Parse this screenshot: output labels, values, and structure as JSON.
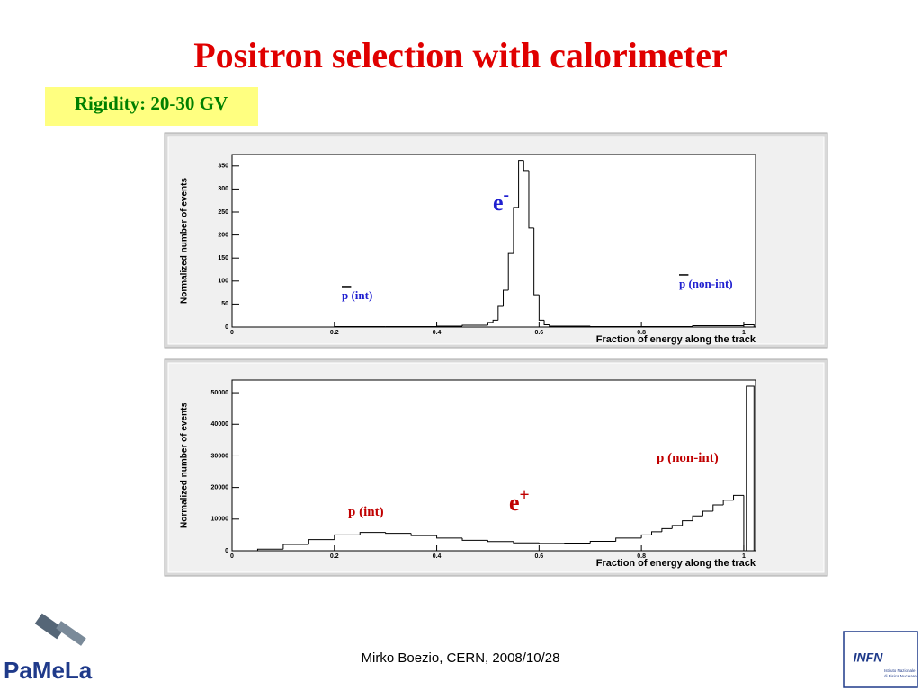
{
  "title": "Positron selection with calorimeter",
  "subtitle": "Rigidity: 20-30 GV",
  "footer": "Mirko Boezio, CERN, 2008/10/28",
  "logos": {
    "left": "PaMeLa",
    "right": "INFN",
    "right_caption": [
      "Istituto Nazionale",
      "di Fisica Nucleare"
    ]
  },
  "chart_data": [
    {
      "type": "histogram",
      "xlabel": "Fraction of energy along the track",
      "ylabel": "Normalized number of events",
      "bins": [
        0,
        0.1,
        0.2,
        0.3,
        0.4,
        0.45,
        0.5,
        0.51,
        0.52,
        0.53,
        0.54,
        0.55,
        0.56,
        0.57,
        0.58,
        0.59,
        0.6,
        0.61,
        0.62,
        0.7,
        0.8,
        0.9,
        1.0,
        1.02
      ],
      "values": [
        0,
        0,
        1,
        1,
        2,
        4,
        10,
        15,
        45,
        80,
        160,
        260,
        362,
        340,
        215,
        70,
        15,
        5,
        2,
        1,
        1,
        3,
        5
      ],
      "color": "#000000",
      "xlim": [
        0,
        1.023
      ],
      "ylim": [
        0,
        375
      ],
      "xticks": [
        0,
        0.2,
        0.4,
        0.6,
        0.8,
        1
      ],
      "yticks": [
        0,
        50,
        100,
        150,
        200,
        250,
        300,
        350
      ],
      "annotations": [
        {
          "text": "e",
          "sup": "-",
          "color": "#1f1fd0"
        },
        {
          "text": "p (int)",
          "overbar": true,
          "color": "#1f1fd0"
        },
        {
          "text": "p (non-int)",
          "overbar": true,
          "color": "#1f1fd0"
        }
      ]
    },
    {
      "type": "histogram",
      "xlabel": "Fraction of energy along the track",
      "ylabel": "Normalized number of events",
      "bins": [
        0,
        0.05,
        0.1,
        0.15,
        0.2,
        0.25,
        0.3,
        0.35,
        0.4,
        0.45,
        0.5,
        0.55,
        0.6,
        0.65,
        0.7,
        0.75,
        0.8,
        0.82,
        0.84,
        0.86,
        0.88,
        0.9,
        0.92,
        0.94,
        0.96,
        0.98,
        1.0,
        1.005,
        1.02
      ],
      "values": [
        0,
        500,
        2000,
        3500,
        5000,
        5800,
        5500,
        4800,
        4000,
        3300,
        2900,
        2500,
        2300,
        2400,
        3000,
        4000,
        5000,
        6000,
        7000,
        8000,
        9500,
        11000,
        12500,
        14500,
        16000,
        17500,
        0,
        52000
      ],
      "color": "#000000",
      "xlim": [
        0,
        1.023
      ],
      "ylim": [
        0,
        54000
      ],
      "xticks": [
        0,
        0.2,
        0.4,
        0.6,
        0.8,
        1
      ],
      "yticks": [
        0,
        10000,
        20000,
        30000,
        40000,
        50000
      ],
      "annotations": [
        {
          "text": "p (non-int)",
          "color": "#c00000"
        },
        {
          "text": "e",
          "sup": "+",
          "color": "#c00000"
        },
        {
          "text": "p (int)",
          "color": "#c00000"
        }
      ]
    }
  ]
}
